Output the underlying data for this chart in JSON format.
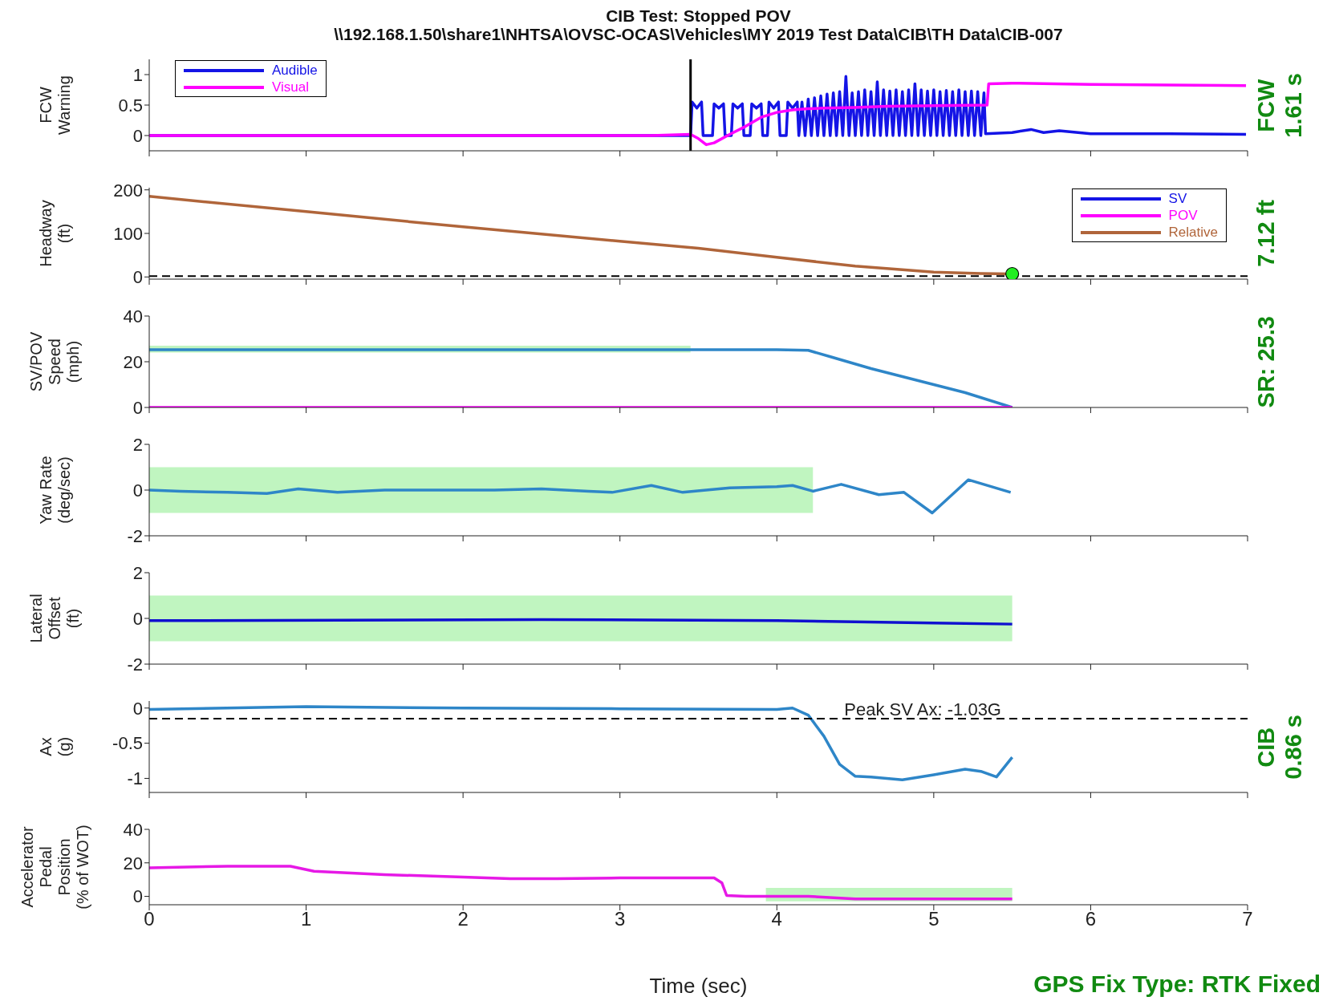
{
  "chart_data": [
    {
      "type": "line",
      "title": "CIB Test: Stopped POV",
      "subtitle": "\\\\192.168.1.50\\share1\\NHTSA\\OVSC-OCAS\\Vehicles\\MY 2019 Test Data\\CIB\\TH Data\\CIB-007",
      "ylabel": "FCW\nWarning",
      "xlim": [
        0,
        7
      ],
      "xticks": [
        0,
        1,
        2,
        3,
        4,
        5,
        6,
        7
      ],
      "ylim": [
        -0.25,
        1.25
      ],
      "yticks": [
        0,
        0.5,
        1
      ],
      "tick_labels": "y",
      "legend": "top left",
      "annotations": [
        "FCW\n1.61 s"
      ],
      "ref_lines": [
        {
          "axis": "x",
          "value": 3.45,
          "color": "#000000",
          "line_style": "solid"
        }
      ],
      "series": [
        {
          "name": "Audible",
          "color": "#1414e6",
          "x": [
            0,
            3.45,
            3.46,
            3.49,
            3.52,
            3.53,
            3.59,
            3.6,
            3.63,
            3.66,
            3.67,
            3.71,
            3.72,
            3.75,
            3.78,
            3.79,
            3.83,
            3.84,
            3.87,
            3.9,
            3.91,
            3.94,
            3.95,
            3.98,
            4.01,
            4.02,
            4.06,
            4.07,
            4.1,
            4.13,
            4.14,
            4.16,
            4.18,
            4.2,
            4.22,
            4.24,
            4.26,
            4.28,
            4.3,
            4.32,
            4.34,
            4.36,
            4.38,
            4.4,
            4.42,
            4.44,
            4.46,
            4.48,
            4.5,
            4.52,
            4.54,
            4.56,
            4.58,
            4.6,
            4.62,
            4.64,
            4.66,
            4.68,
            4.7,
            4.72,
            4.74,
            4.76,
            4.78,
            4.8,
            4.82,
            4.84,
            4.86,
            4.88,
            4.9,
            4.92,
            4.94,
            4.96,
            4.98,
            5,
            5.02,
            5.04,
            5.06,
            5.08,
            5.1,
            5.12,
            5.14,
            5.16,
            5.18,
            5.2,
            5.22,
            5.24,
            5.26,
            5.28,
            5.3,
            5.32,
            5.33,
            5.5,
            5.62,
            5.7,
            5.8,
            6,
            6.5,
            6.99
          ],
          "values": [
            0,
            0,
            0.55,
            0.45,
            0.55,
            0,
            0,
            0.52,
            0.45,
            0.52,
            0,
            0,
            0.52,
            0.45,
            0.52,
            0,
            0,
            0.52,
            0.45,
            0.52,
            0,
            0,
            0.55,
            0.45,
            0.55,
            0,
            0,
            0.55,
            0.45,
            0.55,
            0,
            0.55,
            0,
            0.6,
            0,
            0.62,
            0,
            0.65,
            0,
            0.68,
            0,
            0.7,
            0,
            0.72,
            0,
            0.97,
            0,
            0.7,
            0,
            0.72,
            0,
            0.75,
            0,
            0.72,
            0,
            0.88,
            0,
            0.75,
            0,
            0.73,
            0,
            0.75,
            0,
            0.72,
            0,
            0.75,
            0,
            0.85,
            0,
            0.75,
            0,
            0.73,
            0,
            0.75,
            0,
            0.72,
            0,
            0.74,
            0,
            0.72,
            0,
            0.75,
            0,
            0.72,
            0,
            0.73,
            0,
            0.72,
            0,
            0.7,
            0.03,
            0.05,
            0.1,
            0.05,
            0.08,
            0.03,
            0.03,
            0.02
          ]
        },
        {
          "name": "Visual",
          "color": "#ff00ff",
          "x": [
            0,
            3.2,
            3.45,
            3.5,
            3.55,
            3.6,
            3.7,
            3.8,
            3.9,
            4,
            4.1,
            4.2,
            4.3,
            4.5,
            4.7,
            5,
            5.34,
            5.35,
            5.5,
            6,
            6.5,
            6.99
          ],
          "values": [
            0,
            0,
            0.02,
            -0.05,
            -0.15,
            -0.12,
            0.02,
            0.15,
            0.3,
            0.38,
            0.42,
            0.44,
            0.45,
            0.46,
            0.48,
            0.49,
            0.5,
            0.85,
            0.86,
            0.84,
            0.83,
            0.82
          ]
        }
      ]
    },
    {
      "type": "line",
      "ylabel": "Headway\n(ft)",
      "xlim": [
        0,
        7
      ],
      "xticks": [
        0,
        1,
        2,
        3,
        4,
        5,
        6,
        7
      ],
      "ylim": [
        -5,
        205
      ],
      "yticks": [
        0,
        100,
        200
      ],
      "tick_labels": "y",
      "legend": "top right",
      "annotations": [
        "7.12 ft"
      ],
      "ref_lines": [
        {
          "axis": "y",
          "value": 2,
          "color": "#000000",
          "line_style": "dashed"
        }
      ],
      "series": [
        {
          "name": "SV",
          "color": "#1414e6"
        },
        {
          "name": "POV",
          "color": "#ff00ff"
        },
        {
          "name": "Relative",
          "color": "#b0653a",
          "x": [
            0,
            1,
            2,
            3,
            3.5,
            4,
            4.5,
            5,
            5.3,
            5.5
          ],
          "values": [
            185,
            150,
            115,
            82,
            66,
            45,
            25,
            11,
            8,
            7
          ]
        },
        {
          "type": "scatter",
          "color": "#22ee22",
          "x": [
            5.5
          ],
          "values": [
            7
          ]
        }
      ]
    },
    {
      "type": "line",
      "ylabel": "SV/POV\nSpeed\n(mph)",
      "xlim": [
        0,
        7
      ],
      "xticks": [
        0,
        1,
        2,
        3,
        4,
        5,
        6,
        7
      ],
      "ylim": [
        0,
        40
      ],
      "yticks": [
        0,
        20,
        40
      ],
      "tick_labels": "y",
      "annotations": [
        "SR: 25.3"
      ],
      "series": [
        {
          "color": "#2e86c8",
          "x": [
            0,
            3.45,
            4,
            4.2,
            4.35,
            4.6,
            4.8,
            5,
            5.2,
            5.5
          ],
          "values": [
            25.3,
            25.3,
            25.3,
            25,
            22,
            17,
            13.5,
            10,
            6.5,
            0
          ],
          "lower": [
            24,
            24,
            null,
            null,
            null,
            null,
            null,
            null,
            null,
            null
          ],
          "upper": [
            27,
            27,
            null,
            null,
            null,
            null,
            null,
            null,
            null,
            null
          ]
        },
        {
          "color": "#ff00ff",
          "x": [
            0,
            5.5
          ],
          "values": [
            0,
            0
          ]
        }
      ]
    },
    {
      "type": "line",
      "ylabel": "Yaw Rate\n(deg/sec)",
      "xlim": [
        0,
        7
      ],
      "xticks": [
        0,
        1,
        2,
        3,
        4,
        5,
        6,
        7
      ],
      "ylim": [
        -2,
        2
      ],
      "yticks": [
        -2,
        0,
        2
      ],
      "tick_labels": "y",
      "series": [
        {
          "color": "#2e86c8",
          "x": [
            0,
            0.2,
            0.5,
            0.75,
            0.95,
            1.2,
            1.5,
            1.8,
            2.2,
            2.5,
            2.8,
            2.95,
            3.2,
            3.4,
            3.7,
            4,
            4.1,
            4.23,
            4.41,
            4.65,
            4.81,
            4.99,
            5.22,
            5.49
          ],
          "values": [
            0,
            -0.05,
            -0.1,
            -0.15,
            0.05,
            -0.1,
            0,
            0,
            0,
            0.05,
            -0.05,
            -0.1,
            0.2,
            -0.1,
            0.1,
            0.15,
            0.2,
            -0.05,
            0.25,
            -0.2,
            -0.1,
            -1,
            0.45,
            -0.1
          ],
          "lower": [
            -1,
            -1,
            -1,
            -1,
            -1,
            -1,
            -1,
            -1,
            -1,
            -1,
            -1,
            -1,
            -1,
            -1,
            -1,
            -1,
            -1,
            -1,
            null,
            null,
            null,
            null,
            null,
            null
          ],
          "upper": [
            1,
            1,
            1,
            1,
            1,
            1,
            1,
            1,
            1,
            1,
            1,
            1,
            1,
            1,
            1,
            1,
            1,
            1,
            null,
            null,
            null,
            null,
            null,
            null
          ]
        }
      ]
    },
    {
      "type": "line",
      "ylabel": "Lateral\nOffset\n(ft)",
      "xlim": [
        0,
        7
      ],
      "xticks": [
        0,
        1,
        2,
        3,
        4,
        5,
        6,
        7
      ],
      "ylim": [
        -2,
        2
      ],
      "yticks": [
        -2,
        0,
        2
      ],
      "tick_labels": "y",
      "series": [
        {
          "color": "#1010d0",
          "x": [
            0,
            2.5,
            4,
            5,
            5.5
          ],
          "values": [
            -0.1,
            -0.05,
            -0.1,
            -0.2,
            -0.25
          ],
          "lower": [
            -1,
            -1,
            -1,
            -1,
            -1
          ],
          "upper": [
            1,
            1,
            1,
            1,
            1
          ]
        }
      ]
    },
    {
      "type": "line",
      "ylabel": "Ax\n(g)",
      "xlim": [
        0,
        7
      ],
      "xticks": [
        0,
        1,
        2,
        3,
        4,
        5,
        6,
        7
      ],
      "ylim": [
        -1.2,
        0.1
      ],
      "yticks": [
        -1,
        -0.5,
        0
      ],
      "tick_labels": "y",
      "annotations": [
        "CIB\n0.86 s",
        {
          "text": "Peak SV Ax: -1.03G",
          "x": 4.93,
          "y": -0.15
        }
      ],
      "ref_lines": [
        {
          "axis": "y",
          "value": -0.15,
          "color": "#000000",
          "line_style": "dashed"
        }
      ],
      "series": [
        {
          "color": "#2e86c8",
          "x": [
            0,
            1,
            2,
            3,
            4,
            4.1,
            4.2,
            4.3,
            4.4,
            4.5,
            4.6,
            4.8,
            5,
            5.2,
            5.3,
            5.4,
            5.5
          ],
          "values": [
            -0.02,
            0.02,
            0,
            -0.01,
            -0.02,
            0,
            -0.1,
            -0.4,
            -0.8,
            -0.97,
            -0.98,
            -1.02,
            -0.95,
            -0.87,
            -0.9,
            -0.98,
            -0.7
          ]
        }
      ]
    },
    {
      "type": "line",
      "ylabel": "Accelerator\nPedal\nPosition\n(% of WOT)",
      "xlabel": "Time (sec)",
      "xlim": [
        0,
        7
      ],
      "xticks": [
        0,
        1,
        2,
        3,
        4,
        5,
        6,
        7
      ],
      "ylim": [
        -5,
        40
      ],
      "yticks": [
        0,
        20,
        40
      ],
      "annotations": [
        "GPS Fix Type: RTK Fixed"
      ],
      "series": [
        {
          "color": "#e619e6",
          "x": [
            0,
            0.5,
            0.9,
            1.05,
            1.5,
            2,
            2.3,
            2.6,
            3,
            3.6,
            3.65,
            3.68,
            3.8,
            3.93,
            4.2,
            4.5,
            5.5
          ],
          "values": [
            17,
            18,
            18,
            15,
            13,
            11.5,
            10.5,
            10.5,
            11,
            11,
            8,
            0.5,
            0,
            0,
            0,
            -1.5,
            -1.5
          ],
          "lower": [
            null,
            null,
            null,
            null,
            null,
            null,
            null,
            null,
            null,
            null,
            null,
            null,
            null,
            -3,
            -3,
            -3,
            -3
          ],
          "upper": [
            null,
            null,
            null,
            null,
            null,
            null,
            null,
            null,
            null,
            null,
            null,
            null,
            null,
            5,
            5,
            5,
            5
          ]
        }
      ]
    }
  ]
}
